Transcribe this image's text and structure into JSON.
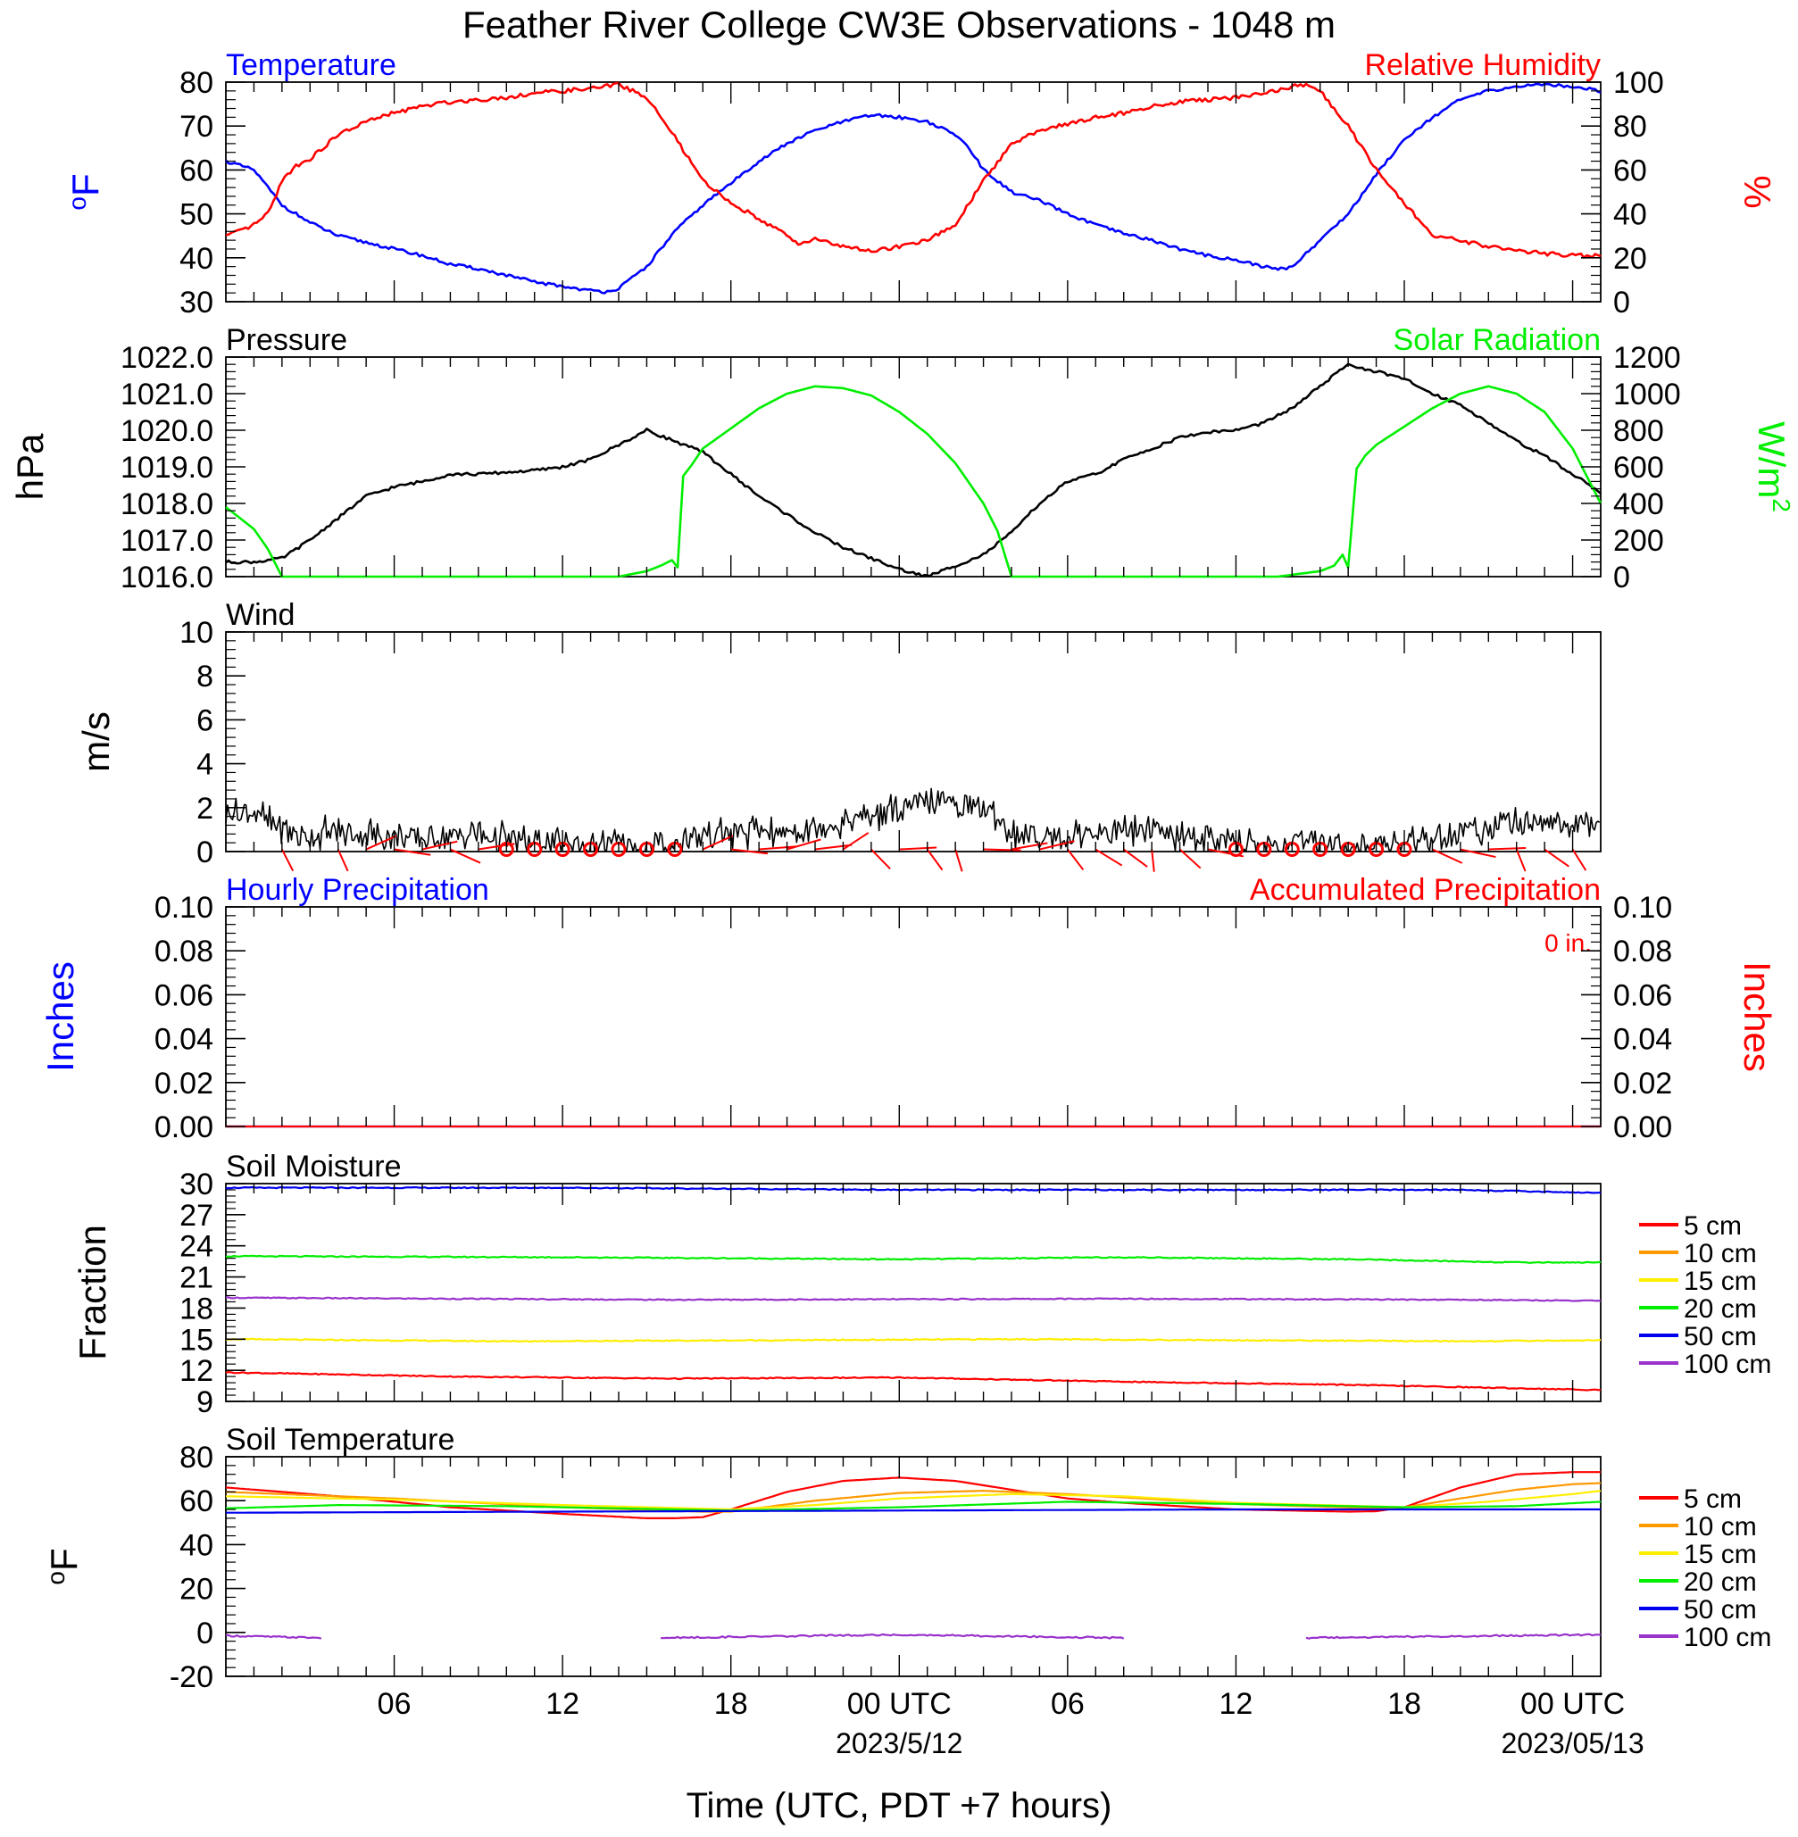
{
  "title": "Feather River College CW3E Observations - 1048 m",
  "xaxis": {
    "label": "Time (UTC, PDT +7 hours)",
    "ticks": [
      {
        "h": 6,
        "label": "06"
      },
      {
        "h": 12,
        "label": "12"
      },
      {
        "h": 18,
        "label": "18"
      },
      {
        "h": 24,
        "label": "00 UTC",
        "date": "2023/5/12"
      },
      {
        "h": 30,
        "label": "06"
      },
      {
        "h": 36,
        "label": "12"
      },
      {
        "h": 42,
        "label": "18"
      },
      {
        "h": 48,
        "label": "00 UTC",
        "date": "2023/05/13"
      }
    ]
  },
  "colors": {
    "temperature": "#0000ff",
    "humidity": "#ff0000",
    "pressure": "#000000",
    "solar": "#00ee00",
    "wind": "#000000",
    "barb": "#ff0000",
    "hourly_precip": "#0000ff",
    "accum_precip": "#ff0000",
    "d5": "#ff0000",
    "d10": "#ff9900",
    "d15": "#ffee00",
    "d20": "#00ee00",
    "d50": "#0000ee",
    "d100": "#9933cc"
  },
  "chart_data": [
    {
      "id": "temp_rh",
      "type": "line",
      "left_title": "Temperature",
      "right_title": "Relative Humidity",
      "left_ylabel": "F",
      "right_ylabel": "%",
      "left_ylim": [
        30,
        80
      ],
      "left_ticks": [
        "30",
        "40",
        "50",
        "60",
        "70",
        "80"
      ],
      "right_ylim": [
        0,
        100
      ],
      "right_ticks": [
        "0",
        "20",
        "40",
        "60",
        "80",
        "100"
      ],
      "series": [
        {
          "name": "Temperature",
          "axis": "left",
          "x": [
            0,
            1,
            2,
            3,
            4,
            5,
            6,
            7,
            8,
            9,
            10,
            11,
            12,
            13,
            13.5,
            14,
            15,
            16,
            17,
            18,
            19,
            20,
            21,
            22,
            23,
            24,
            25,
            26,
            26.5,
            27,
            28,
            29,
            30,
            31,
            32,
            33,
            34,
            35,
            36,
            37,
            37.5,
            38,
            39,
            40,
            41,
            42,
            43,
            44,
            45,
            46,
            47,
            48,
            49
          ],
          "y": [
            62,
            60,
            52,
            48,
            45,
            43.5,
            42,
            40.5,
            38.5,
            37.5,
            36,
            34.5,
            33.5,
            32.5,
            32.3,
            33,
            38,
            46,
            52,
            57,
            62,
            66,
            69,
            71,
            72.5,
            72,
            71,
            68,
            65,
            60,
            55,
            53,
            50,
            47.5,
            45.5,
            44,
            42,
            40.5,
            39.5,
            38,
            37.3,
            38,
            44,
            50,
            59,
            67,
            72,
            76,
            78,
            79,
            79.5,
            79,
            78
          ]
        },
        {
          "name": "Relative Humidity",
          "axis": "right",
          "x": [
            0,
            0.5,
            1,
            1.5,
            2,
            2.5,
            3,
            4,
            5,
            6,
            7,
            8,
            9,
            10,
            11,
            12,
            13,
            14,
            15,
            16,
            17,
            18,
            19,
            20,
            20.5,
            21,
            22,
            23,
            24,
            25,
            26,
            27,
            28,
            29,
            30,
            31,
            32,
            33,
            34,
            35,
            36,
            37,
            38,
            38.5,
            39,
            40,
            41,
            42,
            43,
            44,
            45,
            46,
            47,
            48,
            49
          ],
          "y": [
            30,
            32,
            35,
            40,
            55,
            62,
            65,
            76,
            82,
            86,
            89,
            91,
            92,
            93,
            95,
            96,
            97,
            99,
            93,
            75,
            55,
            45,
            38,
            30,
            26,
            29,
            25,
            23,
            25,
            28,
            35,
            55,
            72,
            78,
            81,
            84,
            86,
            89,
            91,
            92,
            93,
            95,
            98,
            99,
            96,
            80,
            60,
            45,
            30,
            28,
            25,
            23,
            22,
            21,
            21
          ]
        }
      ]
    },
    {
      "id": "pres_solar",
      "type": "line",
      "left_title": "Pressure",
      "right_title": "Solar Radiation",
      "left_ylabel": "hPa",
      "right_ylabel": "W/m",
      "left_ylim": [
        1016,
        1022
      ],
      "left_ticks": [
        "1016.0",
        "1017.0",
        "1018.0",
        "1019.0",
        "1020.0",
        "1021.0",
        "1022.0"
      ],
      "right_ylim": [
        0,
        1200
      ],
      "right_ticks": [
        "0",
        "200",
        "400",
        "600",
        "800",
        "1000",
        "1200"
      ],
      "series": [
        {
          "name": "Pressure",
          "axis": "left",
          "x": [
            0,
            1,
            2,
            3,
            4,
            5,
            6,
            7,
            8,
            9,
            10,
            11,
            12,
            13,
            14,
            15,
            16,
            17,
            18,
            19,
            20,
            21,
            22,
            23,
            24,
            25,
            26,
            27,
            28,
            29,
            30,
            31,
            32,
            33,
            34,
            35,
            36,
            37,
            38,
            39,
            40,
            41,
            42,
            43,
            44,
            45,
            46,
            47,
            48,
            49
          ],
          "y": [
            1016.4,
            1016.4,
            1016.5,
            1017.0,
            1017.6,
            1018.2,
            1018.45,
            1018.6,
            1018.8,
            1018.8,
            1018.85,
            1018.9,
            1019.0,
            1019.2,
            1019.6,
            1020.0,
            1019.7,
            1019.4,
            1018.8,
            1018.2,
            1017.7,
            1017.2,
            1016.8,
            1016.5,
            1016.2,
            1016.0,
            1016.3,
            1016.6,
            1017.2,
            1018.0,
            1018.6,
            1018.8,
            1019.2,
            1019.5,
            1019.8,
            1019.95,
            1020.0,
            1020.2,
            1020.6,
            1021.2,
            1021.8,
            1021.6,
            1021.4,
            1021.0,
            1020.7,
            1020.2,
            1019.7,
            1019.3,
            1018.8,
            1018.3
          ]
        },
        {
          "name": "Solar Radiation",
          "axis": "right",
          "x": [
            0,
            1,
            1.5,
            2,
            4,
            8,
            12,
            14,
            15,
            15.5,
            15.9,
            16.1,
            16.3,
            16.6,
            17,
            18,
            19,
            20,
            21,
            22,
            23,
            24,
            25,
            26,
            27,
            27.5,
            28,
            32,
            36,
            37.5,
            39,
            39.5,
            39.8,
            40,
            40.3,
            40.6,
            41,
            42,
            43,
            44,
            45,
            46,
            47,
            48,
            49
          ],
          "y": [
            380,
            260,
            150,
            0,
            0,
            0,
            0,
            0,
            30,
            60,
            90,
            50,
            550,
            610,
            700,
            810,
            920,
            1000,
            1040,
            1030,
            990,
            900,
            780,
            620,
            400,
            250,
            0,
            0,
            0,
            0,
            30,
            60,
            120,
            50,
            590,
            660,
            720,
            820,
            920,
            1000,
            1040,
            1000,
            900,
            700,
            400
          ]
        }
      ]
    },
    {
      "id": "wind",
      "type": "line",
      "left_title": "Wind",
      "left_ylabel": "m/s",
      "left_ylim": [
        0,
        10
      ],
      "left_ticks": [
        "0",
        "2",
        "4",
        "6",
        "8",
        "10"
      ],
      "series": [
        {
          "name": "Wind",
          "axis": "left",
          "x": [
            0,
            1,
            2,
            3,
            4,
            5,
            6,
            7,
            8,
            9,
            10,
            11,
            12,
            13,
            14,
            15,
            16,
            17,
            18,
            19,
            20,
            21,
            22,
            23,
            24,
            25,
            26,
            27,
            28,
            29,
            30,
            31,
            32,
            33,
            34,
            35,
            36,
            37,
            38,
            39,
            40,
            41,
            42,
            43,
            44,
            45,
            46,
            47,
            48,
            49
          ],
          "y": [
            1.8,
            1.9,
            1.0,
            0.7,
            0.8,
            0.8,
            0.7,
            0.6,
            0.6,
            0.7,
            0.5,
            0.4,
            0.4,
            0.3,
            0.3,
            0.2,
            0.5,
            0.8,
            0.9,
            0.9,
            0.9,
            1.1,
            1.4,
            1.6,
            1.9,
            2.2,
            2.2,
            2.0,
            0.9,
            0.7,
            0.8,
            0.9,
            1.0,
            1.0,
            0.8,
            0.6,
            0.4,
            0.3,
            0.4,
            0.4,
            0.3,
            0.3,
            0.5,
            0.6,
            0.9,
            1.2,
            1.3,
            1.4,
            1.1,
            1.0
          ]
        },
        {
          "name": "Barbs",
          "axis": "left",
          "x": [
            2,
            4,
            5,
            6,
            7,
            8,
            9,
            10,
            11,
            12,
            13,
            14,
            15,
            16,
            17,
            18,
            19,
            20,
            21,
            22,
            23,
            24,
            25,
            26,
            27,
            28,
            29,
            30,
            31,
            32,
            33,
            34,
            35,
            36,
            37,
            38,
            39,
            40,
            41,
            42,
            43,
            44,
            45,
            46,
            47,
            48
          ]
        }
      ]
    },
    {
      "id": "precip",
      "type": "line",
      "left_title": "Hourly Precipitation",
      "right_title": "Accumulated Precipitation",
      "annotation": "0 in.",
      "left_ylabel": "Inches",
      "right_ylabel": "Inches",
      "left_ylim": [
        0,
        0.1
      ],
      "left_ticks": [
        "0.00",
        "0.02",
        "0.04",
        "0.06",
        "0.08",
        "0.10"
      ],
      "right_ylim": [
        0,
        0.1
      ],
      "right_ticks": [
        "0.00",
        "0.02",
        "0.04",
        "0.06",
        "0.08",
        "0.10"
      ],
      "series": [
        {
          "name": "Hourly Precipitation",
          "axis": "left",
          "x": [
            0,
            49
          ],
          "y": [
            0,
            0
          ]
        },
        {
          "name": "Accumulated Precipitation",
          "axis": "right",
          "x": [
            0,
            49
          ],
          "y": [
            0,
            0
          ]
        }
      ]
    },
    {
      "id": "soil_moisture",
      "type": "line",
      "left_title": "Soil Moisture",
      "left_ylabel": "Fraction",
      "left_ylim": [
        9,
        30
      ],
      "left_ticks": [
        "9",
        "12",
        "15",
        "18",
        "21",
        "24",
        "27",
        "30"
      ],
      "legend": [
        "5 cm",
        "10 cm",
        "15 cm",
        "20 cm",
        "50 cm",
        "100 cm"
      ],
      "series": [
        {
          "name": "5 cm",
          "axis": "left",
          "x": [
            0,
            8,
            16,
            24,
            32,
            40,
            49
          ],
          "y": [
            11.8,
            11.4,
            11.2,
            11.3,
            10.9,
            10.6,
            10.1
          ]
        },
        {
          "name": "15 cm",
          "axis": "left",
          "x": [
            0,
            10,
            20,
            28,
            36,
            44,
            49
          ],
          "y": [
            15.0,
            14.8,
            14.9,
            15.0,
            14.9,
            14.8,
            14.9
          ]
        },
        {
          "name": "20 cm",
          "axis": "left",
          "x": [
            0,
            12,
            24,
            32,
            40,
            46,
            49
          ],
          "y": [
            23.0,
            22.9,
            22.7,
            22.9,
            22.7,
            22.4,
            22.4
          ]
        },
        {
          "name": "50 cm",
          "axis": "left",
          "x": [
            0,
            12,
            24,
            36,
            44,
            49
          ],
          "y": [
            29.6,
            29.6,
            29.4,
            29.4,
            29.4,
            29.1
          ]
        },
        {
          "name": "100 cm",
          "axis": "left",
          "x": [
            0,
            16,
            32,
            44,
            49
          ],
          "y": [
            19.0,
            18.8,
            18.9,
            18.8,
            18.7
          ]
        }
      ]
    },
    {
      "id": "soil_temp",
      "type": "line",
      "left_title": "Soil Temperature",
      "left_ylabel": "F",
      "left_ylim": [
        -20,
        80
      ],
      "left_ticks": [
        "-20",
        "0",
        "20",
        "40",
        "60",
        "80"
      ],
      "legend": [
        "5 cm",
        "10 cm",
        "15 cm",
        "20 cm",
        "50 cm",
        "100 cm"
      ],
      "series": [
        {
          "name": "5 cm",
          "axis": "left",
          "x": [
            0,
            4,
            8,
            12,
            15,
            16,
            17,
            18,
            20,
            22,
            24,
            26,
            28,
            30,
            32,
            36,
            40,
            41,
            42,
            44,
            46,
            48,
            49
          ],
          "y": [
            66,
            62,
            57,
            54,
            52,
            52,
            52.5,
            56,
            64,
            69,
            70.5,
            69,
            65,
            61,
            59,
            56,
            55,
            55.2,
            57,
            66,
            72,
            73,
            73
          ]
        },
        {
          "name": "10 cm",
          "axis": "left",
          "x": [
            0,
            6,
            12,
            17,
            18,
            21,
            24,
            27,
            30,
            36,
            41,
            42,
            44,
            46,
            48,
            49
          ],
          "y": [
            64,
            61,
            57,
            55,
            55,
            60,
            63.5,
            64.5,
            63,
            58.5,
            56.5,
            57,
            61,
            65,
            67.5,
            68
          ]
        },
        {
          "name": "15 cm",
          "axis": "left",
          "x": [
            0,
            6,
            12,
            18,
            21,
            24,
            28,
            32,
            36,
            42,
            45,
            48,
            49
          ],
          "y": [
            62,
            60.5,
            58,
            56,
            58,
            61,
            63,
            62,
            59,
            57,
            59.5,
            63,
            64.5
          ]
        },
        {
          "name": "20 cm",
          "axis": "left",
          "x": [
            0,
            4,
            10,
            18,
            24,
            30,
            36,
            42,
            46,
            49
          ],
          "y": [
            56.5,
            58,
            57.5,
            55.5,
            57,
            59.5,
            58.5,
            57,
            57.5,
            59.5
          ]
        },
        {
          "name": "50 cm",
          "axis": "left",
          "x": [
            0,
            12,
            24,
            36,
            49
          ],
          "y": [
            54.5,
            55,
            55.5,
            56,
            56
          ]
        },
        {
          "name": "100 cm",
          "axis": "left",
          "x": [
            0,
            3.4,
            15.5,
            24,
            32,
            38.5,
            49
          ],
          "y": [
            -1.5,
            -2.5,
            -2.5,
            -1,
            -2.5,
            -2.5,
            -1
          ]
        }
      ]
    }
  ]
}
